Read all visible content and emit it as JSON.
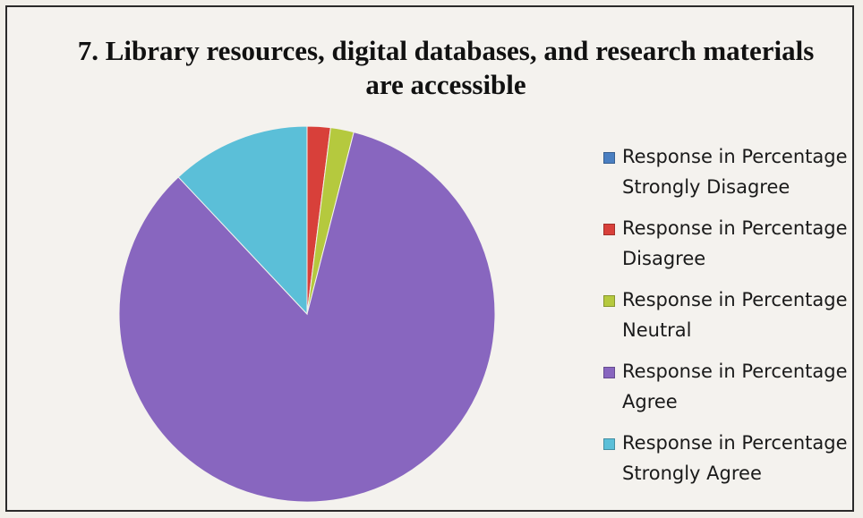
{
  "chart_data": {
    "type": "pie",
    "title": "7. Library resources, digital databases, and research materials are accessible",
    "legend_position": "right",
    "slices": [
      {
        "label": "Response in Percentage Strongly Disagree",
        "value": 0,
        "color": "#4a7fc1"
      },
      {
        "label": "Response in Percentage Disagree",
        "value": 2,
        "color": "#d8403a"
      },
      {
        "label": "Response in Percentage Neutral",
        "value": 2,
        "color": "#b5c93e"
      },
      {
        "label": "Response in Percentage Agree",
        "value": 84,
        "color": "#8866bf"
      },
      {
        "label": "Response in Percentage Strongly Agree",
        "value": 12,
        "color": "#5bbfd8"
      }
    ]
  }
}
